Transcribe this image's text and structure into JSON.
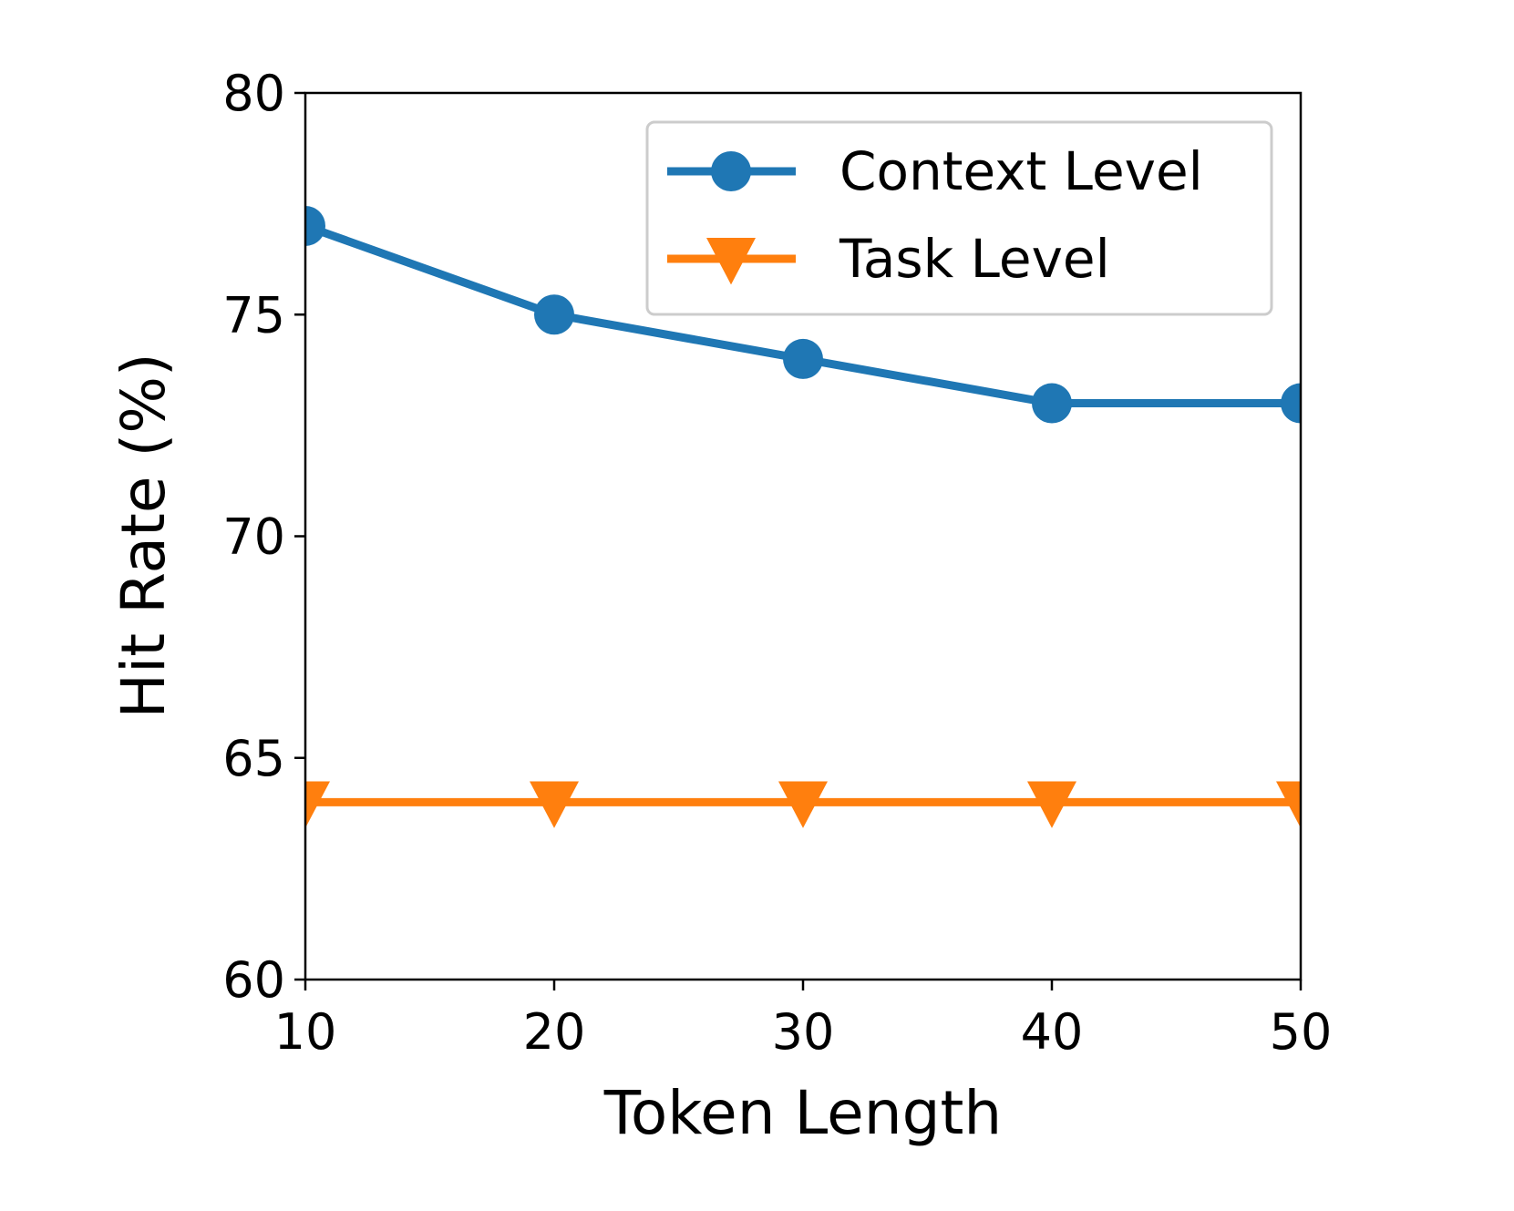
{
  "chart_data": {
    "type": "line",
    "xlabel": "Token Length",
    "ylabel": "Hit Rate (%)",
    "x": [
      10,
      20,
      30,
      40,
      50
    ],
    "series": [
      {
        "name": "Context Level",
        "color": "#1f77b4",
        "marker": "circle",
        "values": [
          77,
          75,
          74,
          73,
          73
        ]
      },
      {
        "name": "Task Level",
        "color": "#ff7f0e",
        "marker": "triangle-down",
        "values": [
          64,
          64,
          64,
          64,
          64
        ]
      }
    ],
    "xlim": [
      10,
      50
    ],
    "xticks": [
      10,
      20,
      30,
      40,
      50
    ],
    "ylim": [
      60,
      80
    ],
    "yticks": [
      60,
      65,
      70,
      75,
      80
    ],
    "grid": false,
    "legend": "upper right"
  }
}
